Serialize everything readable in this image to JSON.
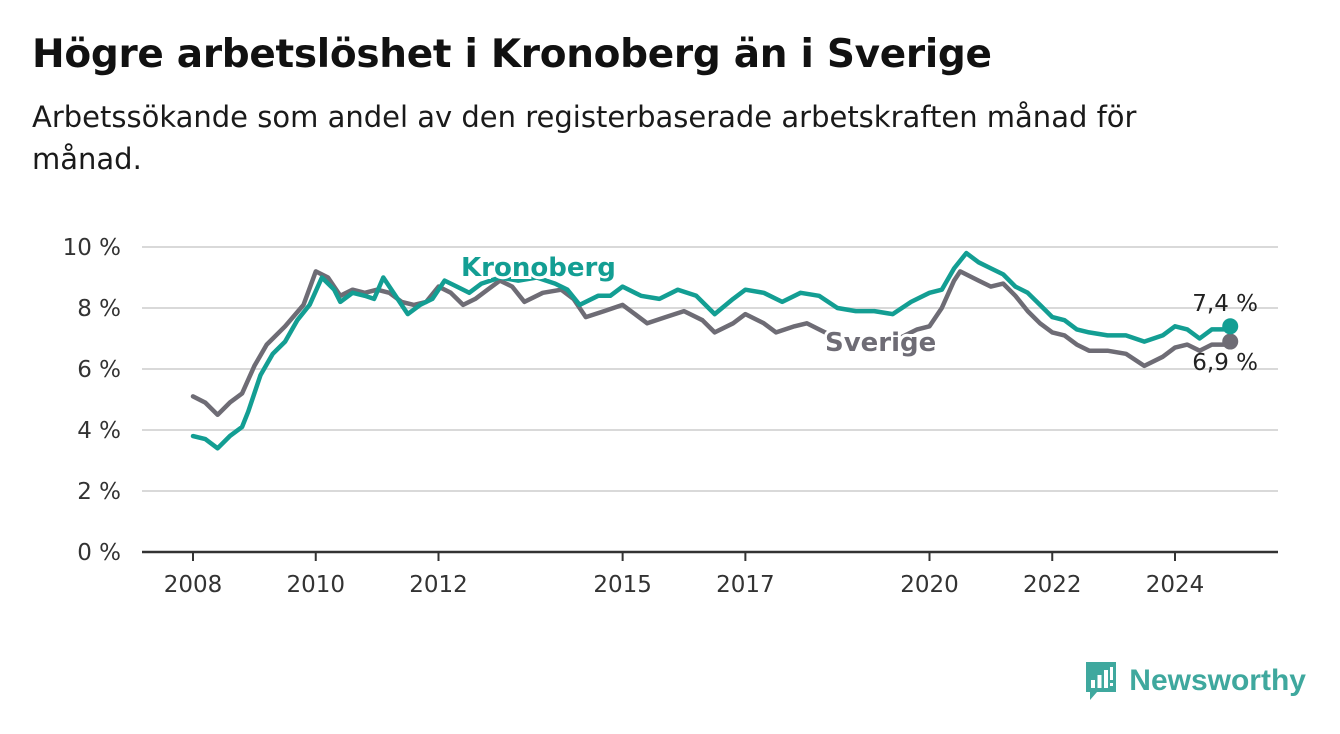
{
  "header": {
    "title": "Högre arbetslöshet i Kronoberg än i Sverige",
    "subtitle": "Arbetssökande som andel av den registerbaserade arbetskraften månad för månad."
  },
  "branding": {
    "name": "Newsworthy",
    "icon": "bar-chart-logo-icon",
    "color": "#3fa89e"
  },
  "chart_data": {
    "type": "line",
    "ylim": [
      0,
      10
    ],
    "xlim": [
      2008.0,
      2025.5
    ],
    "y_ticks": [
      {
        "value": 0,
        "label": "0 %"
      },
      {
        "value": 2,
        "label": "2 %"
      },
      {
        "value": 4,
        "label": "4 %"
      },
      {
        "value": 6,
        "label": "6 %"
      },
      {
        "value": 8,
        "label": "8 %"
      },
      {
        "value": 10,
        "label": "10 %"
      }
    ],
    "x_ticks": [
      {
        "value": 2008.0,
        "label": "2008"
      },
      {
        "value": 2010.0,
        "label": "2010"
      },
      {
        "value": 2012.0,
        "label": "2012"
      },
      {
        "value": 2015.0,
        "label": "2015"
      },
      {
        "value": 2017.0,
        "label": "2017"
      },
      {
        "value": 2020.0,
        "label": "2020"
      },
      {
        "value": 2022.0,
        "label": "2022"
      },
      {
        "value": 2024.0,
        "label": "2024"
      }
    ],
    "grid": true,
    "legend": "inline labels on lines",
    "series": [
      {
        "name": "Kronoberg",
        "color": "#139e93",
        "end_label": "7,4 %",
        "points": [
          [
            2008.0,
            3.8
          ],
          [
            2008.2,
            3.7
          ],
          [
            2008.4,
            3.4
          ],
          [
            2008.6,
            3.8
          ],
          [
            2008.8,
            4.1
          ],
          [
            2008.9,
            4.6
          ],
          [
            2009.1,
            5.8
          ],
          [
            2009.3,
            6.5
          ],
          [
            2009.5,
            6.9
          ],
          [
            2009.7,
            7.6
          ],
          [
            2009.9,
            8.1
          ],
          [
            2010.1,
            9.0
          ],
          [
            2010.3,
            8.6
          ],
          [
            2010.4,
            8.2
          ],
          [
            2010.6,
            8.5
          ],
          [
            2010.8,
            8.4
          ],
          [
            2010.95,
            8.3
          ],
          [
            2011.1,
            9.0
          ],
          [
            2011.3,
            8.4
          ],
          [
            2011.5,
            7.8
          ],
          [
            2011.7,
            8.1
          ],
          [
            2011.9,
            8.3
          ],
          [
            2012.1,
            8.9
          ],
          [
            2012.3,
            8.7
          ],
          [
            2012.5,
            8.5
          ],
          [
            2012.7,
            8.8
          ],
          [
            2013.0,
            9.0
          ],
          [
            2013.3,
            8.9
          ],
          [
            2013.6,
            9.0
          ],
          [
            2013.9,
            8.8
          ],
          [
            2014.1,
            8.6
          ],
          [
            2014.3,
            8.1
          ],
          [
            2014.6,
            8.4
          ],
          [
            2014.8,
            8.4
          ],
          [
            2015.0,
            8.7
          ],
          [
            2015.3,
            8.4
          ],
          [
            2015.6,
            8.3
          ],
          [
            2015.9,
            8.6
          ],
          [
            2016.2,
            8.4
          ],
          [
            2016.5,
            7.8
          ],
          [
            2016.8,
            8.3
          ],
          [
            2017.0,
            8.6
          ],
          [
            2017.3,
            8.5
          ],
          [
            2017.6,
            8.2
          ],
          [
            2017.9,
            8.5
          ],
          [
            2018.2,
            8.4
          ],
          [
            2018.5,
            8.0
          ],
          [
            2018.8,
            7.9
          ],
          [
            2019.1,
            7.9
          ],
          [
            2019.4,
            7.8
          ],
          [
            2019.7,
            8.2
          ],
          [
            2020.0,
            8.5
          ],
          [
            2020.2,
            8.6
          ],
          [
            2020.4,
            9.3
          ],
          [
            2020.6,
            9.8
          ],
          [
            2020.8,
            9.5
          ],
          [
            2021.0,
            9.3
          ],
          [
            2021.2,
            9.1
          ],
          [
            2021.4,
            8.7
          ],
          [
            2021.6,
            8.5
          ],
          [
            2021.8,
            8.1
          ],
          [
            2022.0,
            7.7
          ],
          [
            2022.2,
            7.6
          ],
          [
            2022.4,
            7.3
          ],
          [
            2022.6,
            7.2
          ],
          [
            2022.9,
            7.1
          ],
          [
            2023.2,
            7.1
          ],
          [
            2023.5,
            6.9
          ],
          [
            2023.8,
            7.1
          ],
          [
            2024.0,
            7.4
          ],
          [
            2024.2,
            7.3
          ],
          [
            2024.4,
            7.0
          ],
          [
            2024.6,
            7.3
          ],
          [
            2024.8,
            7.3
          ],
          [
            2024.9,
            7.4
          ]
        ]
      },
      {
        "name": "Sverige",
        "color": "#6e6c75",
        "end_label": "6,9 %",
        "points": [
          [
            2008.0,
            5.1
          ],
          [
            2008.2,
            4.9
          ],
          [
            2008.4,
            4.5
          ],
          [
            2008.6,
            4.9
          ],
          [
            2008.8,
            5.2
          ],
          [
            2009.0,
            6.1
          ],
          [
            2009.2,
            6.8
          ],
          [
            2009.5,
            7.4
          ],
          [
            2009.8,
            8.1
          ],
          [
            2010.0,
            9.2
          ],
          [
            2010.2,
            9.0
          ],
          [
            2010.4,
            8.4
          ],
          [
            2010.6,
            8.6
          ],
          [
            2010.8,
            8.5
          ],
          [
            2011.0,
            8.6
          ],
          [
            2011.2,
            8.5
          ],
          [
            2011.4,
            8.2
          ],
          [
            2011.6,
            8.1
          ],
          [
            2011.8,
            8.2
          ],
          [
            2012.0,
            8.7
          ],
          [
            2012.2,
            8.5
          ],
          [
            2012.4,
            8.1
          ],
          [
            2012.6,
            8.3
          ],
          [
            2012.8,
            8.6
          ],
          [
            2013.0,
            8.9
          ],
          [
            2013.2,
            8.7
          ],
          [
            2013.4,
            8.2
          ],
          [
            2013.7,
            8.5
          ],
          [
            2014.0,
            8.6
          ],
          [
            2014.2,
            8.3
          ],
          [
            2014.4,
            7.7
          ],
          [
            2014.7,
            7.9
          ],
          [
            2015.0,
            8.1
          ],
          [
            2015.2,
            7.8
          ],
          [
            2015.4,
            7.5
          ],
          [
            2015.7,
            7.7
          ],
          [
            2016.0,
            7.9
          ],
          [
            2016.3,
            7.6
          ],
          [
            2016.5,
            7.2
          ],
          [
            2016.8,
            7.5
          ],
          [
            2017.0,
            7.8
          ],
          [
            2017.3,
            7.5
          ],
          [
            2017.5,
            7.2
          ],
          [
            2017.8,
            7.4
          ],
          [
            2018.0,
            7.5
          ],
          [
            2018.2,
            7.3
          ],
          [
            2018.5,
            7.0
          ],
          [
            2018.8,
            6.9
          ],
          [
            2019.1,
            6.9
          ],
          [
            2019.5,
            7.0
          ],
          [
            2019.8,
            7.3
          ],
          [
            2020.0,
            7.4
          ],
          [
            2020.2,
            8.0
          ],
          [
            2020.4,
            8.9
          ],
          [
            2020.5,
            9.2
          ],
          [
            2020.8,
            8.9
          ],
          [
            2021.0,
            8.7
          ],
          [
            2021.2,
            8.8
          ],
          [
            2021.4,
            8.4
          ],
          [
            2021.6,
            7.9
          ],
          [
            2021.8,
            7.5
          ],
          [
            2022.0,
            7.2
          ],
          [
            2022.2,
            7.1
          ],
          [
            2022.4,
            6.8
          ],
          [
            2022.6,
            6.6
          ],
          [
            2022.9,
            6.6
          ],
          [
            2023.2,
            6.5
          ],
          [
            2023.5,
            6.1
          ],
          [
            2023.8,
            6.4
          ],
          [
            2024.0,
            6.7
          ],
          [
            2024.2,
            6.8
          ],
          [
            2024.4,
            6.6
          ],
          [
            2024.6,
            6.8
          ],
          [
            2024.8,
            6.8
          ],
          [
            2024.9,
            6.9
          ]
        ]
      }
    ]
  }
}
